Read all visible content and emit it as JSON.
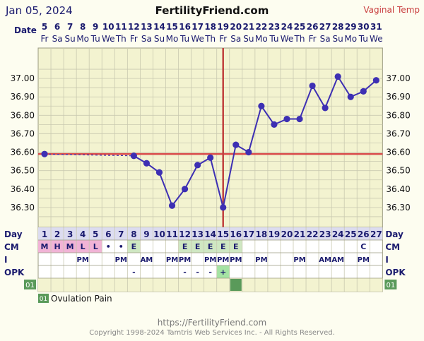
{
  "header": {
    "start_date": "Jan 05, 2024",
    "site": "FertilityFriend.com",
    "temp_type": "Vaginal Temp",
    "date_label": "Date"
  },
  "footer": {
    "url": "https://FertilityFriend.com",
    "copyright": "Copyright 1998-2024 Tamtris Web Services Inc. - All Rights Reserved."
  },
  "legend": {
    "code": "01",
    "label": "Ovulation Pain"
  },
  "colors": {
    "background": "#fdfdf0",
    "grid_fill": "#f3f3d0",
    "grid_line": "#c9c9b0",
    "temp_line": "#3d2fb3",
    "coverline": "#d94a4a",
    "ovulation_line": "#c0413f",
    "mucus_pink": "#f1b3d6",
    "mucus_green": "#cfe7c2",
    "opk_pos": "#a5e3a3",
    "row_header": "#1a1a6e",
    "code_green": "#5a9a5a"
  },
  "chart_data": {
    "type": "line",
    "title": "",
    "ylabel": "",
    "xlabel": "",
    "ylim": [
      36.2,
      37.1
    ],
    "yticks": [
      36.3,
      36.4,
      36.5,
      36.6,
      36.7,
      36.8,
      36.9,
      37.0
    ],
    "ytick_labels": [
      "36.30",
      "36.40",
      "36.50",
      "36.60",
      "36.70",
      "36.80",
      "36.90",
      "37.00"
    ],
    "days": [
      5,
      6,
      7,
      8,
      9,
      10,
      11,
      12,
      13,
      14,
      15,
      16,
      17,
      18,
      19,
      20,
      21,
      22,
      23,
      24,
      25,
      26,
      27,
      28,
      29,
      30,
      31
    ],
    "weekdays": [
      "Fr",
      "Sa",
      "Su",
      "Mo",
      "Tu",
      "We",
      "Th",
      "Fr",
      "Sa",
      "Su",
      "Mo",
      "Tu",
      "We",
      "Th",
      "Fr",
      "Sa",
      "Su",
      "Mo",
      "Tu",
      "We",
      "Th",
      "Fr",
      "Sa",
      "Su",
      "Mo",
      "Tu",
      "We"
    ],
    "cycle_days": [
      1,
      2,
      3,
      4,
      5,
      6,
      7,
      8,
      9,
      10,
      11,
      12,
      13,
      14,
      15,
      16,
      17,
      18,
      19,
      20,
      21,
      22,
      23,
      24,
      25,
      26,
      27
    ],
    "temps": [
      36.59,
      null,
      null,
      null,
      null,
      null,
      null,
      36.58,
      36.54,
      36.49,
      36.31,
      36.4,
      36.53,
      36.57,
      36.3,
      36.64,
      36.6,
      36.85,
      36.75,
      36.78,
      36.78,
      36.96,
      36.84,
      37.01,
      36.9,
      36.93,
      36.99
    ],
    "coverline": 36.59,
    "ovulation_cycle_day": 15,
    "rows": {
      "day_label": "Day",
      "cm_label": "CM",
      "i_label": "I",
      "opk_label": "OPK",
      "code_label": "01",
      "cm": [
        "M",
        "H",
        "M",
        "L",
        "L",
        "•",
        "•",
        "E",
        "",
        "",
        "",
        "E",
        "E",
        "E",
        "E",
        "E",
        "",
        "",
        "",
        "",
        "",
        "",
        "",
        "",
        "",
        "C",
        ""
      ],
      "cm_fill": [
        "pink",
        "pink",
        "pink",
        "pink",
        "pink",
        "",
        "",
        "green",
        "",
        "",
        "",
        "green",
        "green",
        "green",
        "green",
        "green",
        "",
        "",
        "",
        "",
        "",
        "",
        "",
        "",
        "",
        "",
        ""
      ],
      "intercourse": [
        "",
        "",
        "",
        "PM",
        "",
        "",
        "PM",
        "",
        "AM",
        "",
        "PM",
        "PM",
        "",
        "PM",
        "PM",
        "PM",
        "",
        "PM",
        "",
        "",
        "PM",
        "",
        "AM",
        "AM",
        "",
        "PM",
        ""
      ],
      "opk": [
        "",
        "",
        "",
        "",
        "",
        "",
        "",
        "-",
        "",
        "",
        "",
        "-",
        "-",
        "-",
        "+",
        "",
        "",
        "",
        "",
        "",
        "",
        "",
        "",
        "",
        "",
        "",
        ""
      ],
      "code_marks": [
        false,
        false,
        false,
        false,
        false,
        false,
        false,
        false,
        false,
        false,
        false,
        false,
        false,
        false,
        false,
        true,
        false,
        false,
        false,
        false,
        false,
        false,
        false,
        false,
        false,
        false,
        false
      ]
    }
  }
}
